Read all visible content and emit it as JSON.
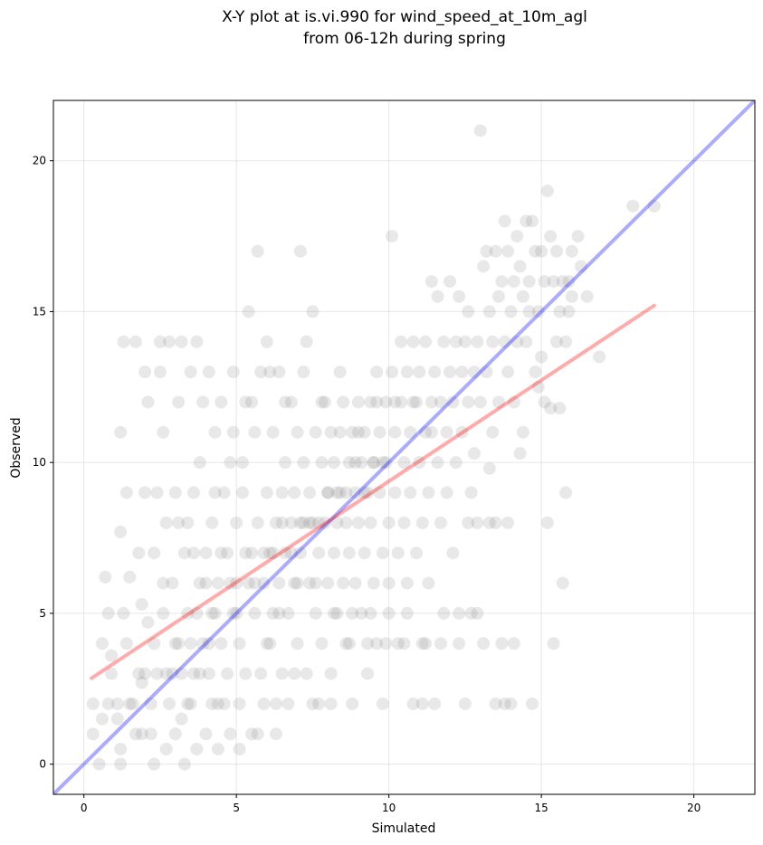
{
  "chart_data": {
    "type": "scatter",
    "title": [
      "X-Y plot at is.vi.990 for wind_speed_at_10m_agl",
      "from 06-12h during spring"
    ],
    "xlabel": "Simulated",
    "ylabel": "Observed",
    "xlim": [
      -1,
      22
    ],
    "ylim": [
      -1,
      22
    ],
    "xticks": [
      0,
      5,
      10,
      15,
      20
    ],
    "yticks": [
      0,
      5,
      10,
      15,
      20
    ],
    "grid": true,
    "point_color": "#808080",
    "point_opacity": 0.18,
    "identity_line": {
      "color": "#0000ff",
      "opacity": 0.33,
      "from": [
        -1,
        -1
      ],
      "to": [
        22,
        22
      ]
    },
    "regression_line": {
      "color": "#ff0000",
      "opacity": 0.33,
      "from": [
        0.25,
        2.85
      ],
      "to": [
        18.7,
        15.2
      ]
    },
    "points": [
      [
        0.3,
        1
      ],
      [
        0.3,
        2
      ],
      [
        0.5,
        0
      ],
      [
        0.6,
        1.5
      ],
      [
        0.6,
        4
      ],
      [
        0.7,
        6.2
      ],
      [
        0.8,
        5
      ],
      [
        0.8,
        2
      ],
      [
        0.9,
        3
      ],
      [
        0.9,
        3.6
      ],
      [
        1.1,
        2
      ],
      [
        1.1,
        1.5
      ],
      [
        1.2,
        0.5
      ],
      [
        1.2,
        0
      ],
      [
        1.2,
        11
      ],
      [
        1.3,
        14
      ],
      [
        1.2,
        7.7
      ],
      [
        1.3,
        5
      ],
      [
        1.4,
        9
      ],
      [
        1.4,
        4
      ],
      [
        1.5,
        6.2
      ],
      [
        1.6,
        2
      ],
      [
        1.7,
        1
      ],
      [
        1.7,
        14
      ],
      [
        1.8,
        7
      ],
      [
        1.8,
        3
      ],
      [
        1.9,
        2.7
      ],
      [
        1.9,
        5.3
      ],
      [
        2.0,
        9
      ],
      [
        2.0,
        13
      ],
      [
        2.1,
        12
      ],
      [
        2.1,
        4.7
      ],
      [
        2.2,
        2
      ],
      [
        2.2,
        1
      ],
      [
        2.3,
        0
      ],
      [
        2.3,
        7
      ],
      [
        2.4,
        9
      ],
      [
        2.4,
        3
      ],
      [
        2.5,
        13
      ],
      [
        2.5,
        14
      ],
      [
        2.6,
        5
      ],
      [
        2.6,
        11
      ],
      [
        2.7,
        0.5
      ],
      [
        2.7,
        8
      ],
      [
        2.8,
        14
      ],
      [
        2.8,
        2
      ],
      [
        2.9,
        3
      ],
      [
        2.9,
        6
      ],
      [
        3.0,
        9
      ],
      [
        3.0,
        1
      ],
      [
        3.1,
        12
      ],
      [
        3.1,
        4
      ],
      [
        3.2,
        14
      ],
      [
        3.2,
        1.5
      ],
      [
        3.3,
        0
      ],
      [
        3.3,
        7
      ],
      [
        3.4,
        5
      ],
      [
        3.4,
        8
      ],
      [
        3.5,
        13
      ],
      [
        3.5,
        2
      ],
      [
        3.6,
        3
      ],
      [
        3.6,
        9
      ],
      [
        3.7,
        14
      ],
      [
        3.7,
        0.5
      ],
      [
        3.8,
        6
      ],
      [
        3.8,
        10
      ],
      [
        3.9,
        4
      ],
      [
        3.9,
        12
      ],
      [
        4.0,
        1
      ],
      [
        4.0,
        7
      ],
      [
        4.1,
        3
      ],
      [
        4.1,
        13
      ],
      [
        4.2,
        2
      ],
      [
        4.2,
        8
      ],
      [
        4.3,
        5
      ],
      [
        4.3,
        11
      ],
      [
        4.4,
        6
      ],
      [
        4.4,
        0.5
      ],
      [
        4.5,
        12
      ],
      [
        4.5,
        4
      ],
      [
        4.6,
        9
      ],
      [
        4.6,
        2
      ],
      [
        4.7,
        7
      ],
      [
        4.7,
        3
      ],
      [
        4.8,
        10
      ],
      [
        4.8,
        1
      ],
      [
        4.9,
        5
      ],
      [
        4.9,
        13
      ],
      [
        5.0,
        6
      ],
      [
        5.0,
        8
      ],
      [
        5.1,
        4
      ],
      [
        5.1,
        2
      ],
      [
        5.2,
        9
      ],
      [
        5.2,
        10
      ],
      [
        5.3,
        12
      ],
      [
        5.3,
        3
      ],
      [
        5.4,
        6
      ],
      [
        5.4,
        15
      ],
      [
        5.5,
        7
      ],
      [
        5.5,
        1
      ],
      [
        5.6,
        5
      ],
      [
        5.6,
        11
      ],
      [
        5.7,
        17
      ],
      [
        5.7,
        8
      ],
      [
        5.8,
        3
      ],
      [
        5.8,
        13
      ],
      [
        5.9,
        6
      ],
      [
        5.9,
        2
      ],
      [
        6.0,
        9
      ],
      [
        6.0,
        14
      ],
      [
        6.1,
        7
      ],
      [
        6.1,
        4
      ],
      [
        6.2,
        11
      ],
      [
        6.2,
        5
      ],
      [
        6.3,
        8
      ],
      [
        6.3,
        1
      ],
      [
        6.4,
        13
      ],
      [
        6.4,
        6
      ],
      [
        6.5,
        9
      ],
      [
        6.5,
        3
      ],
      [
        6.6,
        7
      ],
      [
        6.6,
        10
      ],
      [
        6.7,
        5
      ],
      [
        6.7,
        2
      ],
      [
        6.8,
        12
      ],
      [
        6.8,
        8
      ],
      [
        6.9,
        6
      ],
      [
        6.9,
        9
      ],
      [
        7.0,
        11
      ],
      [
        7.0,
        4
      ],
      [
        7.1,
        17
      ],
      [
        7.1,
        7
      ],
      [
        7.2,
        8
      ],
      [
        7.2,
        10
      ],
      [
        7.3,
        3
      ],
      [
        7.3,
        14
      ],
      [
        7.4,
        9
      ],
      [
        7.4,
        6
      ],
      [
        7.5,
        15
      ],
      [
        7.5,
        8
      ],
      [
        7.6,
        5
      ],
      [
        7.6,
        11
      ],
      [
        7.7,
        7
      ],
      [
        7.7,
        2
      ],
      [
        7.8,
        10
      ],
      [
        7.8,
        4
      ],
      [
        7.9,
        12
      ],
      [
        7.9,
        8
      ],
      [
        8.0,
        6
      ],
      [
        8.0,
        9
      ],
      [
        8.1,
        11
      ],
      [
        8.1,
        3
      ],
      [
        8.2,
        7
      ],
      [
        8.2,
        10
      ],
      [
        8.3,
        5
      ],
      [
        8.3,
        8
      ],
      [
        8.4,
        13
      ],
      [
        8.4,
        9
      ],
      [
        8.5,
        6
      ],
      [
        8.5,
        12
      ],
      [
        8.6,
        4
      ],
      [
        8.6,
        8
      ],
      [
        8.7,
        10
      ],
      [
        8.7,
        7
      ],
      [
        8.8,
        11
      ],
      [
        8.8,
        2
      ],
      [
        8.9,
        9
      ],
      [
        8.9,
        6
      ],
      [
        9.0,
        12
      ],
      [
        9.0,
        8
      ],
      [
        9.1,
        10
      ],
      [
        9.1,
        5
      ],
      [
        9.2,
        7
      ],
      [
        9.2,
        11
      ],
      [
        9.3,
        9
      ],
      [
        9.3,
        3
      ],
      [
        9.4,
        12
      ],
      [
        9.4,
        8
      ],
      [
        9.5,
        10
      ],
      [
        9.5,
        6
      ],
      [
        9.6,
        13
      ],
      [
        9.6,
        4
      ],
      [
        9.7,
        11
      ],
      [
        9.7,
        9
      ],
      [
        9.8,
        7
      ],
      [
        9.8,
        2
      ],
      [
        9.9,
        12
      ],
      [
        9.9,
        10
      ],
      [
        10.0,
        8
      ],
      [
        10.0,
        5
      ],
      [
        10.1,
        17.5
      ],
      [
        10.1,
        13
      ],
      [
        10.2,
        11
      ],
      [
        10.2,
        9
      ],
      [
        10.3,
        7
      ],
      [
        10.3,
        4
      ],
      [
        10.4,
        12
      ],
      [
        10.4,
        14
      ],
      [
        10.5,
        10
      ],
      [
        10.5,
        8
      ],
      [
        10.6,
        13
      ],
      [
        10.6,
        6
      ],
      [
        10.7,
        11
      ],
      [
        10.7,
        9
      ],
      [
        10.8,
        14
      ],
      [
        10.8,
        2
      ],
      [
        10.9,
        12
      ],
      [
        10.9,
        7
      ],
      [
        11.0,
        13
      ],
      [
        11.0,
        10
      ],
      [
        11.1,
        8
      ],
      [
        11.1,
        4
      ],
      [
        11.2,
        11
      ],
      [
        11.2,
        14
      ],
      [
        11.3,
        9
      ],
      [
        11.3,
        6
      ],
      [
        11.4,
        12
      ],
      [
        11.4,
        16
      ],
      [
        11.5,
        13
      ],
      [
        11.5,
        2
      ],
      [
        11.6,
        10
      ],
      [
        11.6,
        15.5
      ],
      [
        11.7,
        8
      ],
      [
        11.7,
        12
      ],
      [
        11.8,
        14
      ],
      [
        11.8,
        5
      ],
      [
        11.9,
        11
      ],
      [
        11.9,
        9
      ],
      [
        12.0,
        16
      ],
      [
        12.0,
        13
      ],
      [
        12.1,
        12
      ],
      [
        12.1,
        7
      ],
      [
        12.2,
        14
      ],
      [
        12.2,
        10
      ],
      [
        12.3,
        15.5
      ],
      [
        12.3,
        4
      ],
      [
        12.4,
        11
      ],
      [
        12.4,
        13
      ],
      [
        12.5,
        14
      ],
      [
        12.5,
        2
      ],
      [
        12.6,
        12
      ],
      [
        12.6,
        15
      ],
      [
        12.7,
        9
      ],
      [
        12.7,
        5
      ],
      [
        12.8,
        13
      ],
      [
        12.8,
        10.3
      ],
      [
        12.9,
        14
      ],
      [
        12.9,
        8
      ],
      [
        13.0,
        21
      ],
      [
        13.0,
        12
      ],
      [
        13.1,
        16.5
      ],
      [
        13.1,
        4
      ],
      [
        13.2,
        17
      ],
      [
        13.2,
        13
      ],
      [
        13.3,
        15
      ],
      [
        13.3,
        9.8
      ],
      [
        13.4,
        14
      ],
      [
        13.4,
        11
      ],
      [
        13.5,
        17
      ],
      [
        13.5,
        8
      ],
      [
        13.6,
        15.5
      ],
      [
        13.6,
        12
      ],
      [
        13.7,
        16
      ],
      [
        13.7,
        4
      ],
      [
        13.8,
        18
      ],
      [
        13.8,
        14
      ],
      [
        13.9,
        17
      ],
      [
        13.9,
        13
      ],
      [
        14.0,
        15
      ],
      [
        14.0,
        2
      ],
      [
        14.1,
        16
      ],
      [
        14.1,
        12
      ],
      [
        14.2,
        17.5
      ],
      [
        14.2,
        14
      ],
      [
        14.3,
        16.5
      ],
      [
        14.3,
        10.3
      ],
      [
        14.4,
        15.5
      ],
      [
        14.4,
        11
      ],
      [
        14.5,
        18
      ],
      [
        14.5,
        14
      ],
      [
        14.6,
        15
      ],
      [
        14.6,
        16
      ],
      [
        14.7,
        18
      ],
      [
        14.7,
        2
      ],
      [
        14.8,
        17
      ],
      [
        14.8,
        13
      ],
      [
        14.9,
        15
      ],
      [
        14.9,
        12.5
      ],
      [
        15.0,
        17
      ],
      [
        15.0,
        13.5
      ],
      [
        15.1,
        16
      ],
      [
        15.1,
        12
      ],
      [
        15.2,
        19
      ],
      [
        15.2,
        8
      ],
      [
        15.3,
        17.5
      ],
      [
        15.3,
        11.8
      ],
      [
        15.4,
        16
      ],
      [
        15.4,
        4
      ],
      [
        15.5,
        17
      ],
      [
        15.5,
        14
      ],
      [
        15.6,
        15
      ],
      [
        15.6,
        11.8
      ],
      [
        15.7,
        16
      ],
      [
        15.7,
        6
      ],
      [
        15.8,
        14
      ],
      [
        15.8,
        9
      ],
      [
        15.9,
        16
      ],
      [
        15.9,
        15
      ],
      [
        16.0,
        17
      ],
      [
        16.0,
        15.5
      ],
      [
        16.2,
        17.5
      ],
      [
        16.3,
        16.5
      ],
      [
        16.5,
        15.5
      ],
      [
        16.9,
        13.5
      ],
      [
        18.0,
        18.5
      ],
      [
        18.7,
        18.5
      ],
      [
        3.5,
        4
      ],
      [
        3.8,
        3
      ],
      [
        4.0,
        6
      ],
      [
        4.2,
        5
      ],
      [
        4.5,
        7
      ],
      [
        4.8,
        6
      ],
      [
        5.0,
        5
      ],
      [
        5.3,
        7
      ],
      [
        5.6,
        6
      ],
      [
        5.9,
        7
      ],
      [
        6.2,
        7
      ],
      [
        6.5,
        8
      ],
      [
        6.8,
        7
      ],
      [
        7.1,
        8
      ],
      [
        7.4,
        8
      ],
      [
        7.7,
        8
      ],
      [
        8.0,
        9
      ],
      [
        8.3,
        9
      ],
      [
        8.6,
        9
      ],
      [
        8.9,
        10
      ],
      [
        9.2,
        9
      ],
      [
        9.5,
        10
      ],
      [
        9.8,
        10
      ],
      [
        3.2,
        3
      ],
      [
        3.4,
        2
      ],
      [
        2.7,
        3
      ],
      [
        3.0,
        4
      ],
      [
        4.4,
        2
      ],
      [
        4.1,
        4
      ],
      [
        3.7,
        5
      ],
      [
        6.0,
        4
      ],
      [
        6.4,
        5
      ],
      [
        7.0,
        6
      ],
      [
        7.6,
        6
      ],
      [
        8.2,
        5
      ],
      [
        8.8,
        5
      ],
      [
        9.4,
        5
      ],
      [
        10.0,
        6
      ],
      [
        10.6,
        5
      ],
      [
        11.2,
        4
      ],
      [
        2.0,
        3
      ],
      [
        2.3,
        4
      ],
      [
        1.9,
        1
      ],
      [
        1.5,
        2
      ],
      [
        2.6,
        6
      ],
      [
        3.1,
        8
      ],
      [
        3.6,
        7
      ],
      [
        4.3,
        9
      ],
      [
        4.9,
        11
      ],
      [
        5.5,
        12
      ],
      [
        6.1,
        13
      ],
      [
        6.6,
        12
      ],
      [
        7.2,
        13
      ],
      [
        7.8,
        12
      ],
      [
        8.4,
        11
      ],
      [
        9.0,
        11
      ],
      [
        9.6,
        12
      ],
      [
        10.2,
        12
      ],
      [
        10.8,
        12
      ],
      [
        11.4,
        11
      ],
      [
        5.1,
        0.5
      ],
      [
        5.7,
        1
      ],
      [
        6.3,
        2
      ],
      [
        6.9,
        3
      ],
      [
        7.5,
        2
      ],
      [
        8.1,
        2
      ],
      [
        8.7,
        4
      ],
      [
        9.3,
        4
      ],
      [
        9.9,
        4
      ],
      [
        10.5,
        4
      ],
      [
        11.1,
        2
      ],
      [
        11.7,
        4
      ],
      [
        12.3,
        5
      ],
      [
        12.9,
        5
      ],
      [
        13.5,
        2
      ],
      [
        14.1,
        4
      ],
      [
        13.8,
        2
      ],
      [
        12.6,
        8
      ],
      [
        13.3,
        8
      ],
      [
        13.9,
        8
      ]
    ]
  }
}
